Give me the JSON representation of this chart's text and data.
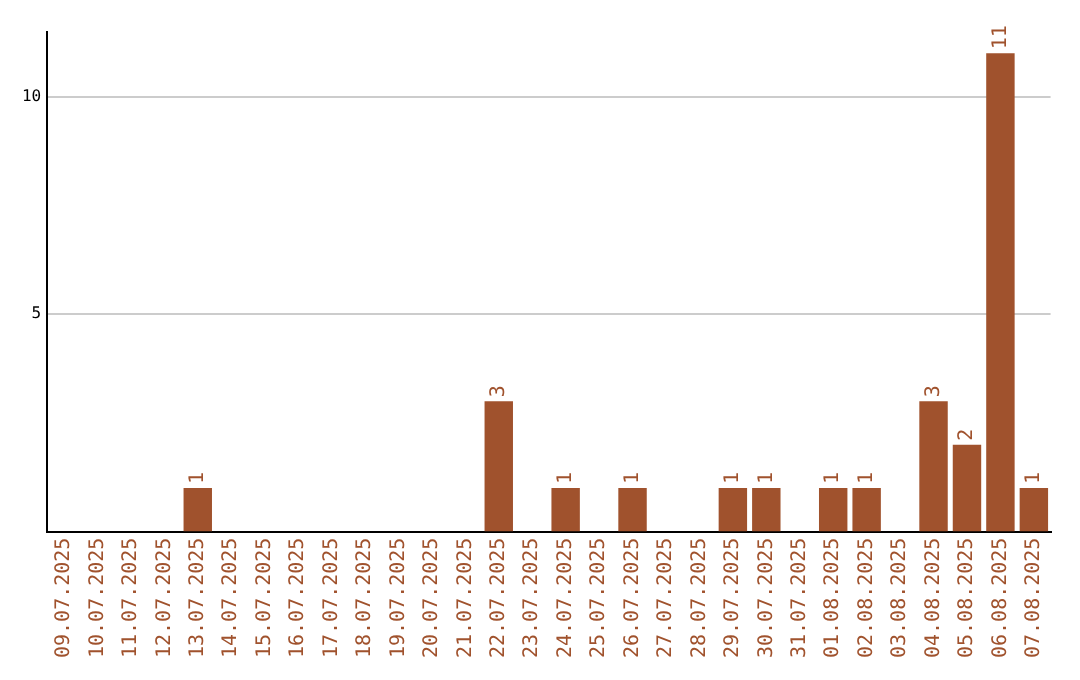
{
  "chart_data": {
    "type": "bar",
    "categories": [
      "09.07.2025",
      "10.07.2025",
      "11.07.2025",
      "12.07.2025",
      "13.07.2025",
      "14.07.2025",
      "15.07.2025",
      "16.07.2025",
      "17.07.2025",
      "18.07.2025",
      "19.07.2025",
      "20.07.2025",
      "21.07.2025",
      "22.07.2025",
      "23.07.2025",
      "24.07.2025",
      "25.07.2025",
      "26.07.2025",
      "27.07.2025",
      "28.07.2025",
      "29.07.2025",
      "30.07.2025",
      "31.07.2025",
      "01.08.2025",
      "02.08.2025",
      "03.08.2025",
      "04.08.2025",
      "05.08.2025",
      "06.08.2025",
      "07.08.2025"
    ],
    "values": [
      0,
      0,
      0,
      0,
      1,
      0,
      0,
      0,
      0,
      0,
      0,
      0,
      0,
      3,
      0,
      1,
      0,
      1,
      0,
      0,
      1,
      1,
      0,
      1,
      1,
      0,
      3,
      2,
      11,
      1
    ],
    "value_labels": [
      null,
      null,
      null,
      null,
      "1",
      null,
      null,
      null,
      null,
      null,
      null,
      null,
      null,
      "3",
      null,
      "1",
      null,
      "1",
      null,
      null,
      "1",
      "1",
      null,
      "1",
      "1",
      null,
      "3",
      "2",
      "11",
      "1"
    ],
    "color": "#a0522d",
    "ylim": [
      0,
      11.5
    ],
    "yticks": [
      5,
      10
    ],
    "grid": "y",
    "legend": false
  }
}
